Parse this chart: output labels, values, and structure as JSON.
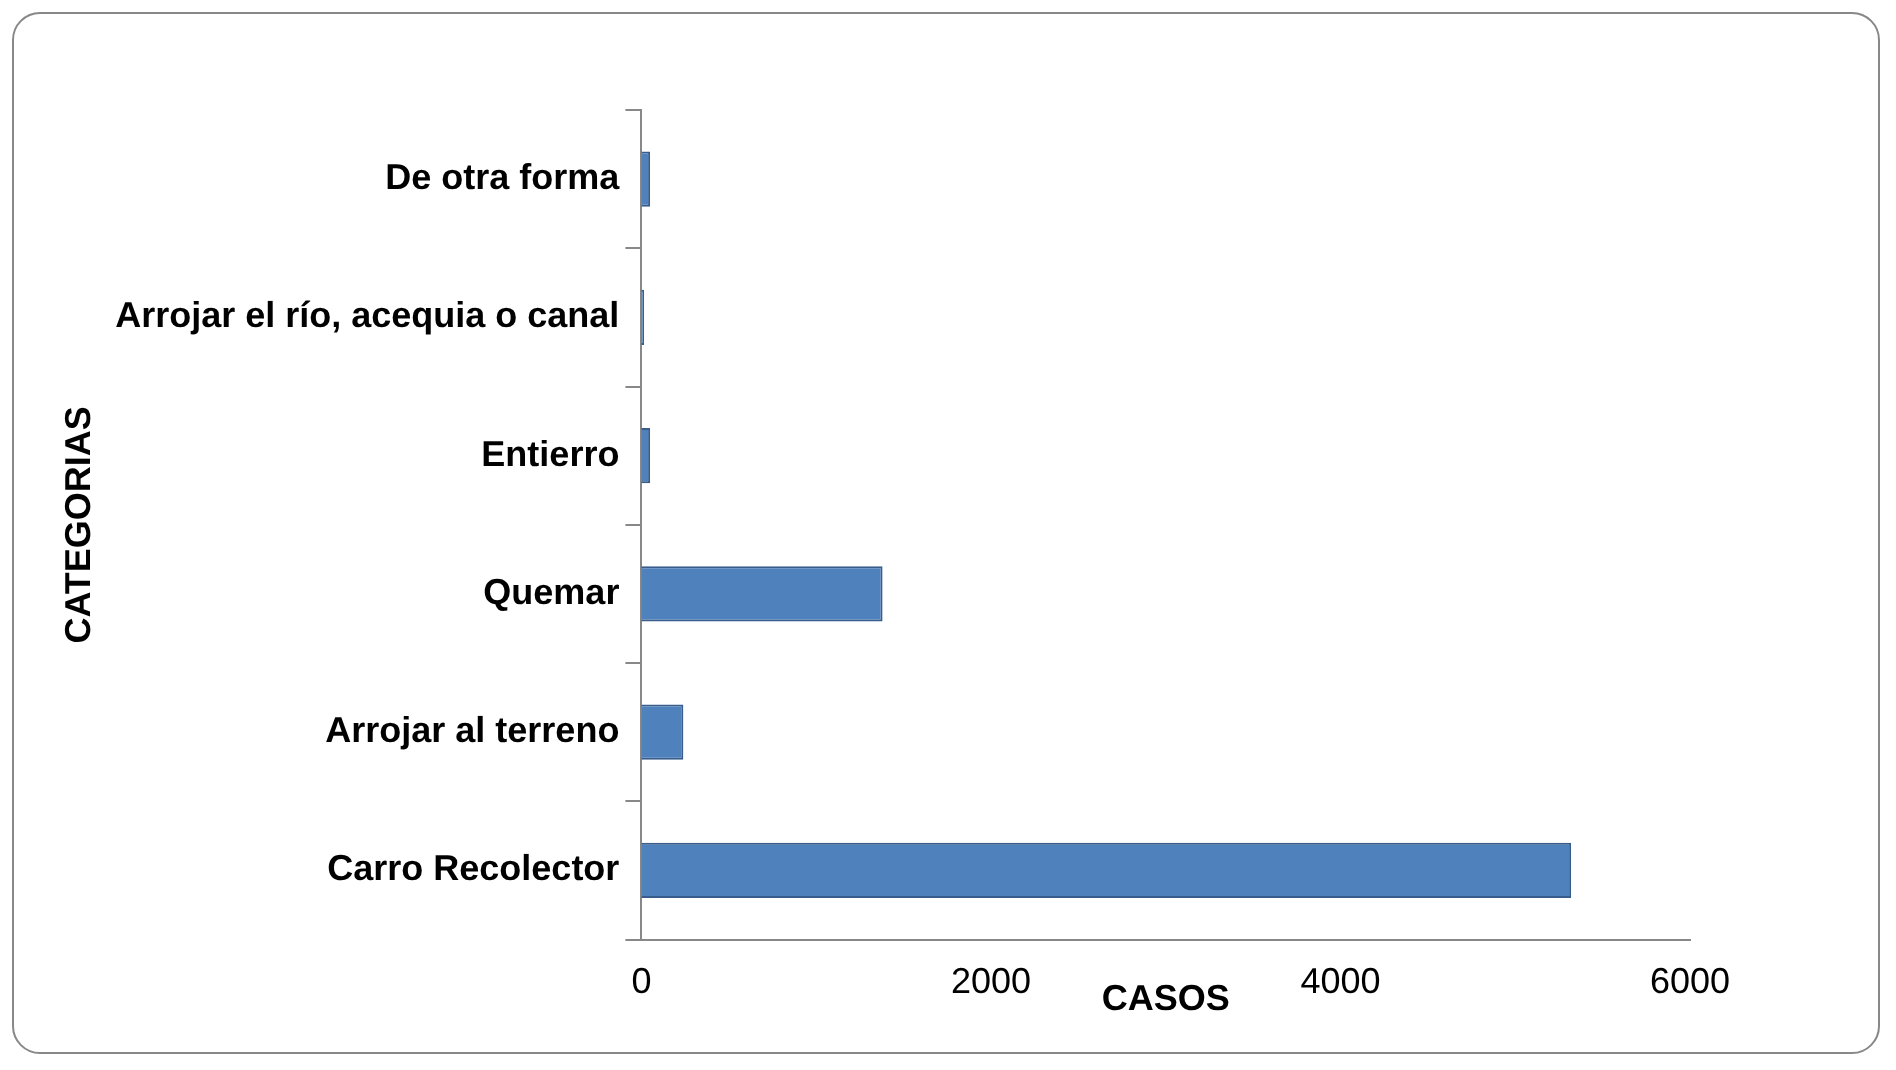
{
  "chart_data": {
    "type": "bar",
    "orientation": "horizontal",
    "categories": [
      "De otra forma",
      "Arrojar el río, acequia o canal",
      "Entierro",
      "Quemar",
      "Arrojar al terreno",
      "Carro Recolector"
    ],
    "values": [
      50,
      15,
      50,
      1380,
      240,
      5320
    ],
    "color": "#4f81bd",
    "xlabel": "CASOS",
    "ylabel": "CATEGORIAS",
    "xlim": [
      0,
      6000
    ],
    "xticks": [
      0,
      2000,
      4000,
      6000
    ],
    "grid": false,
    "legend": false
  }
}
